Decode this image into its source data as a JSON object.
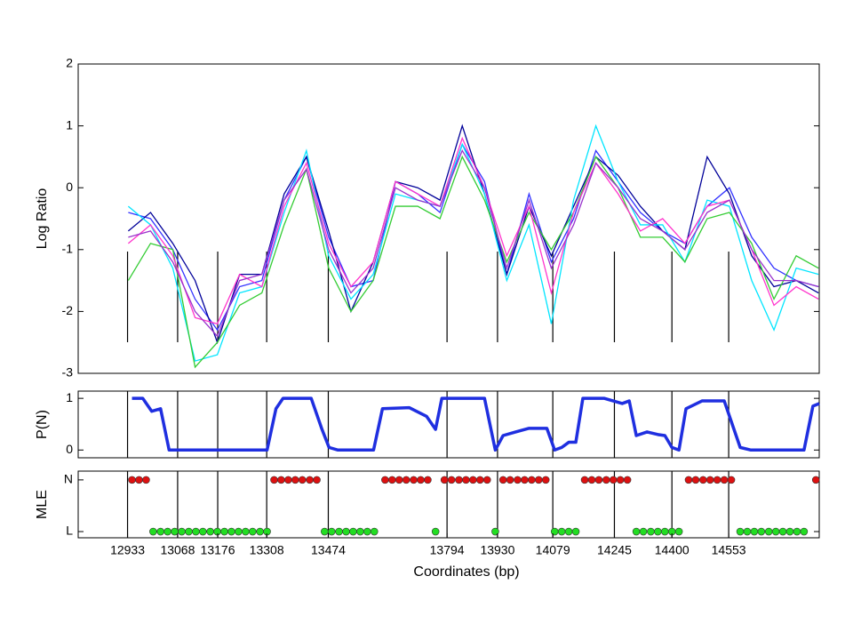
{
  "chart_data": [
    {
      "type": "line",
      "ylabel": "Log Ratio",
      "xlim": [
        12800,
        14797
      ],
      "ylim": [
        -3,
        2
      ],
      "yticks": [
        -3,
        -2,
        -1,
        0,
        1,
        2
      ],
      "x": [
        12935,
        12995,
        13055,
        13115,
        13175,
        13235,
        13295,
        13355,
        13415,
        13475,
        13535,
        13595,
        13655,
        13715,
        13775,
        13835,
        13895,
        13955,
        14015,
        14075,
        14135,
        14195,
        14255,
        14315,
        14375,
        14435,
        14495,
        14555,
        14615,
        14675,
        14735,
        14795
      ],
      "series": [
        {
          "color": "#3333ff",
          "values": [
            -0.4,
            -0.5,
            -1.0,
            -1.8,
            -2.3,
            -1.6,
            -1.5,
            -0.2,
            0.5,
            -0.8,
            -1.6,
            -1.5,
            0.1,
            -0.1,
            -0.4,
            0.7,
            0.1,
            -1.4,
            -0.1,
            -1.2,
            -0.5,
            0.6,
            0.1,
            -0.4,
            -0.7,
            -0.9,
            -0.3,
            0.0,
            -0.8,
            -1.3,
            -1.5,
            -1.6
          ]
        },
        {
          "color": "#000099",
          "values": [
            -0.7,
            -0.4,
            -0.9,
            -1.5,
            -2.5,
            -1.4,
            -1.4,
            -0.1,
            0.5,
            -0.7,
            -2.0,
            -1.2,
            0.1,
            0.0,
            -0.2,
            1.0,
            -0.1,
            -1.4,
            -0.3,
            -1.1,
            -0.3,
            0.5,
            0.2,
            -0.3,
            -0.7,
            -1.0,
            0.5,
            -0.1,
            -1.1,
            -1.6,
            -1.5,
            -1.7
          ]
        },
        {
          "color": "#00e5ff",
          "values": [
            -0.3,
            -0.6,
            -1.3,
            -2.8,
            -2.7,
            -1.7,
            -1.6,
            -0.4,
            0.6,
            -1.1,
            -1.8,
            -1.4,
            -0.1,
            -0.2,
            -0.3,
            0.7,
            -0.1,
            -1.5,
            -0.6,
            -2.2,
            -0.2,
            1.0,
            0.1,
            -0.6,
            -0.6,
            -1.2,
            -0.2,
            -0.3,
            -1.5,
            -2.3,
            -1.3,
            -1.4
          ]
        },
        {
          "color": "#33cc33",
          "values": [
            -1.5,
            -0.9,
            -1.0,
            -2.9,
            -2.5,
            -1.9,
            -1.7,
            -0.6,
            0.3,
            -1.3,
            -2.0,
            -1.5,
            -0.3,
            -0.3,
            -0.5,
            0.5,
            -0.2,
            -1.2,
            -0.4,
            -1.0,
            -0.4,
            0.5,
            0.0,
            -0.8,
            -0.8,
            -1.2,
            -0.5,
            -0.4,
            -0.9,
            -1.8,
            -1.1,
            -1.3
          ]
        },
        {
          "color": "#ff33cc",
          "values": [
            -0.9,
            -0.6,
            -1.1,
            -2.1,
            -2.2,
            -1.4,
            -1.6,
            -0.3,
            0.4,
            -0.9,
            -1.6,
            -1.2,
            0.1,
            -0.1,
            -0.3,
            0.8,
            0.0,
            -1.1,
            -0.3,
            -1.7,
            -0.4,
            0.4,
            -0.1,
            -0.7,
            -0.5,
            -0.9,
            -0.3,
            -0.2,
            -1.0,
            -1.9,
            -1.6,
            -1.8
          ]
        },
        {
          "color": "#9933cc",
          "values": [
            -0.8,
            -0.7,
            -1.2,
            -2.0,
            -2.4,
            -1.5,
            -1.4,
            -0.2,
            0.3,
            -1.0,
            -1.7,
            -1.3,
            0.0,
            -0.2,
            -0.3,
            0.6,
            0.0,
            -1.3,
            -0.2,
            -1.3,
            -0.6,
            0.4,
            0.0,
            -0.5,
            -0.7,
            -1.0,
            -0.4,
            -0.2,
            -1.0,
            -1.5,
            -1.5,
            -1.6
          ]
        }
      ]
    },
    {
      "type": "line",
      "ylabel": "P(N)",
      "color": "#1f2fe0",
      "xlim": [
        12800,
        14797
      ],
      "ylim": [
        -0.15,
        1.14
      ],
      "yticks": [
        0,
        1
      ],
      "x": [
        12945,
        12974,
        12998,
        13022,
        13045,
        13309,
        13333,
        13352,
        13428,
        13457,
        13476,
        13500,
        13596,
        13620,
        13692,
        13739,
        13763,
        13780,
        13895,
        13924,
        13945,
        13979,
        14015,
        14063,
        14084,
        14103,
        14122,
        14141,
        14160,
        14218,
        14242,
        14266,
        14285,
        14304,
        14333,
        14362,
        14381,
        14400,
        14419,
        14438,
        14481,
        14541,
        14584,
        14613,
        14756,
        14780,
        14797
      ],
      "values": [
        1.0,
        1.0,
        0.75,
        0.8,
        0.0,
        0.0,
        0.8,
        1.0,
        1.0,
        0.4,
        0.05,
        0.0,
        0.0,
        0.8,
        0.82,
        0.65,
        0.4,
        1.0,
        1.0,
        0.0,
        0.28,
        0.35,
        0.42,
        0.42,
        0.0,
        0.05,
        0.15,
        0.15,
        1.0,
        1.0,
        0.95,
        0.9,
        0.95,
        0.28,
        0.35,
        0.3,
        0.28,
        0.05,
        0.0,
        0.8,
        0.95,
        0.95,
        0.05,
        0.0,
        0.0,
        0.85,
        0.9
      ]
    },
    {
      "type": "scatter",
      "ylabel": "MLE",
      "xlabel": "Coordinates (bp)",
      "xlim": [
        12800,
        14797
      ],
      "ylim": [
        -0.12,
        1.17
      ],
      "yticks": [
        {
          "value": 0,
          "label": "L"
        },
        {
          "value": 1,
          "label": "N"
        }
      ],
      "state_colors": [
        "#22dd22",
        "#dd1111"
      ],
      "xticks": [
        12933,
        13068,
        13176,
        13308,
        13474,
        13794,
        13930,
        14079,
        14245,
        14400,
        14553
      ],
      "x": [
        12945,
        12964,
        12983,
        13002,
        13022,
        13041,
        13060,
        13079,
        13098,
        13117,
        13136,
        13156,
        13175,
        13194,
        13213,
        13232,
        13251,
        13270,
        13290,
        13309,
        13328,
        13347,
        13366,
        13385,
        13404,
        13424,
        13443,
        13464,
        13483,
        13503,
        13522,
        13541,
        13560,
        13579,
        13598,
        13627,
        13646,
        13665,
        13684,
        13704,
        13723,
        13742,
        13763,
        13787,
        13806,
        13826,
        13845,
        13864,
        13883,
        13902,
        13924,
        13945,
        13964,
        13984,
        14003,
        14022,
        14041,
        14060,
        14084,
        14103,
        14122,
        14141,
        14165,
        14184,
        14203,
        14223,
        14242,
        14261,
        14280,
        14304,
        14323,
        14343,
        14362,
        14381,
        14400,
        14419,
        14445,
        14464,
        14484,
        14503,
        14522,
        14541,
        14560,
        14584,
        14603,
        14622,
        14641,
        14661,
        14680,
        14699,
        14718,
        14737,
        14756,
        14788
      ],
      "values": [
        1,
        1,
        1,
        0,
        0,
        0,
        0,
        0,
        0,
        0,
        0,
        0,
        0,
        0,
        0,
        0,
        0,
        0,
        0,
        0,
        1,
        1,
        1,
        1,
        1,
        1,
        1,
        0,
        0,
        0,
        0,
        0,
        0,
        0,
        0,
        1,
        1,
        1,
        1,
        1,
        1,
        1,
        0,
        1,
        1,
        1,
        1,
        1,
        1,
        1,
        0,
        1,
        1,
        1,
        1,
        1,
        1,
        1,
        0,
        0,
        0,
        0,
        1,
        1,
        1,
        1,
        1,
        1,
        1,
        0,
        0,
        0,
        0,
        0,
        0,
        0,
        1,
        1,
        1,
        1,
        1,
        1,
        1,
        0,
        0,
        0,
        0,
        0,
        0,
        0,
        0,
        0,
        0,
        1
      ]
    }
  ]
}
